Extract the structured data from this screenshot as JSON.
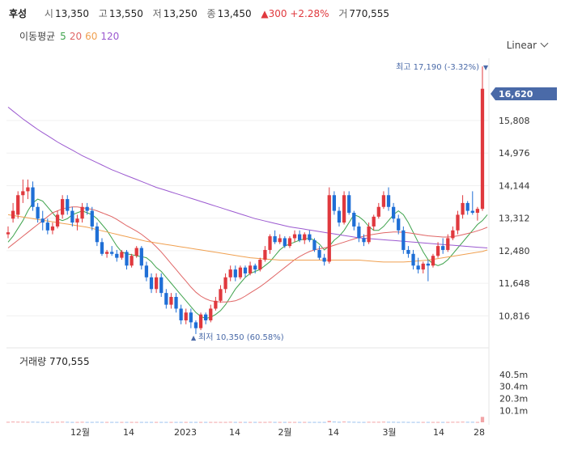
{
  "header": {
    "name": "후성",
    "open_label": "시",
    "open": "13,350",
    "high_label": "고",
    "high": "13,550",
    "low_label": "저",
    "low": "13,250",
    "close_label": "종",
    "close": "13,450",
    "change": "▲300 +2.28%",
    "volume_label": "거",
    "volume": "770,555"
  },
  "ma_legend": {
    "title": "이동평균",
    "items": [
      {
        "label": "5",
        "color": "#3fa34d"
      },
      {
        "label": "20",
        "color": "#e06666"
      },
      {
        "label": "60",
        "color": "#f0a050"
      },
      {
        "label": "120",
        "color": "#9b59d0"
      }
    ]
  },
  "scale_selector": {
    "label": "Linear"
  },
  "price_axis": {
    "ticks": [
      "15,808",
      "14,976",
      "14,144",
      "13,312",
      "12,480",
      "11,648",
      "10,816"
    ]
  },
  "current_price": "16,620",
  "annotations": {
    "high": "최고 17,190 (-3.32%)",
    "low": "최저 10,350 (60.58%)"
  },
  "x_axis": {
    "ticks": [
      "12월",
      "14",
      "2023",
      "14",
      "2월",
      "14",
      "3월",
      "14",
      "28"
    ]
  },
  "volume_panel": {
    "title": "거래량",
    "value": "770,555",
    "ticks": [
      "40.5m",
      "30.4m",
      "20.3m",
      "10.1m"
    ]
  },
  "colors": {
    "up": "#e0393e",
    "down": "#1f6fd6",
    "badge": "#4a6aa8"
  },
  "chart_data": {
    "type": "candlestick",
    "ylim": [
      10100,
      17400
    ],
    "ohlc": [
      [
        12900,
        13100,
        12800,
        12950
      ],
      [
        13300,
        13700,
        13200,
        13500
      ],
      [
        13400,
        14000,
        13300,
        13900
      ],
      [
        13900,
        14300,
        13700,
        14000
      ],
      [
        14000,
        14300,
        13800,
        14100
      ],
      [
        14100,
        14250,
        13500,
        13600
      ],
      [
        13600,
        13700,
        13200,
        13300
      ],
      [
        13300,
        13500,
        13000,
        13200
      ],
      [
        13200,
        13300,
        12900,
        13000
      ],
      [
        13000,
        13200,
        12900,
        13100
      ],
      [
        13100,
        13500,
        13050,
        13400
      ],
      [
        13400,
        13900,
        13300,
        13800
      ],
      [
        13800,
        13900,
        13400,
        13500
      ],
      [
        13500,
        13600,
        13100,
        13200
      ],
      [
        13200,
        13400,
        13000,
        13300
      ],
      [
        13300,
        13700,
        13200,
        13600
      ],
      [
        13600,
        13700,
        13400,
        13500
      ],
      [
        13500,
        13600,
        13000,
        13100
      ],
      [
        13100,
        13200,
        12600,
        12700
      ],
      [
        12700,
        12800,
        12350,
        12400
      ],
      [
        12400,
        12500,
        12300,
        12450
      ],
      [
        12450,
        12600,
        12350,
        12400
      ],
      [
        12400,
        12500,
        12200,
        12300
      ],
      [
        12300,
        12500,
        12250,
        12450
      ],
      [
        12450,
        12500,
        12000,
        12100
      ],
      [
        12100,
        12400,
        12050,
        12350
      ],
      [
        12350,
        12600,
        12300,
        12550
      ],
      [
        12550,
        12600,
        12000,
        12100
      ],
      [
        12100,
        12200,
        11700,
        11800
      ],
      [
        11800,
        11900,
        11400,
        11500
      ],
      [
        11500,
        11900,
        11400,
        11800
      ],
      [
        11800,
        11900,
        11300,
        11400
      ],
      [
        11400,
        11500,
        11000,
        11100
      ],
      [
        11100,
        11400,
        11000,
        11300
      ],
      [
        11300,
        11400,
        10900,
        11000
      ],
      [
        11000,
        11100,
        10600,
        10700
      ],
      [
        10700,
        11000,
        10600,
        10900
      ],
      [
        10900,
        11000,
        10500,
        10650
      ],
      [
        10650,
        10700,
        10350,
        10500
      ],
      [
        10500,
        10900,
        10450,
        10850
      ],
      [
        10850,
        10900,
        10600,
        10700
      ],
      [
        10700,
        11100,
        10650,
        11000
      ],
      [
        11000,
        11300,
        10950,
        11200
      ],
      [
        11200,
        11600,
        11150,
        11500
      ],
      [
        11500,
        11900,
        11400,
        11800
      ],
      [
        11800,
        12100,
        11700,
        12000
      ],
      [
        12000,
        12100,
        11700,
        11800
      ],
      [
        11800,
        12100,
        11750,
        12050
      ],
      [
        12050,
        12100,
        11800,
        11900
      ],
      [
        11900,
        12200,
        11850,
        12100
      ],
      [
        12100,
        12150,
        11900,
        12000
      ],
      [
        12000,
        12300,
        11950,
        12250
      ],
      [
        12250,
        12600,
        12200,
        12500
      ],
      [
        12500,
        12900,
        12400,
        12850
      ],
      [
        12850,
        13000,
        12650,
        12700
      ],
      [
        12700,
        12900,
        12650,
        12800
      ],
      [
        12800,
        12850,
        12550,
        12600
      ],
      [
        12600,
        12850,
        12550,
        12800
      ],
      [
        12800,
        13000,
        12700,
        12900
      ],
      [
        12900,
        13000,
        12700,
        12750
      ],
      [
        12750,
        12950,
        12650,
        12900
      ],
      [
        12900,
        13000,
        12700,
        12750
      ],
      [
        12750,
        12800,
        12450,
        12500
      ],
      [
        12500,
        12600,
        12250,
        12300
      ],
      [
        12300,
        12400,
        12100,
        12200
      ],
      [
        12200,
        14100,
        12150,
        13900
      ],
      [
        13900,
        14000,
        13400,
        13500
      ],
      [
        13500,
        13600,
        13100,
        13200
      ],
      [
        13200,
        14000,
        13150,
        13900
      ],
      [
        13900,
        14000,
        13400,
        13450
      ],
      [
        13450,
        13500,
        13000,
        13100
      ],
      [
        13100,
        13200,
        12700,
        12800
      ],
      [
        12800,
        12900,
        12600,
        12700
      ],
      [
        12700,
        13200,
        12650,
        13100
      ],
      [
        13100,
        13400,
        13000,
        13350
      ],
      [
        13350,
        13700,
        13300,
        13600
      ],
      [
        13600,
        14000,
        13550,
        13900
      ],
      [
        13900,
        14100,
        13500,
        13600
      ],
      [
        13600,
        13700,
        13200,
        13300
      ],
      [
        13300,
        13400,
        12900,
        13000
      ],
      [
        13000,
        13100,
        12400,
        12500
      ],
      [
        12500,
        12600,
        12300,
        12400
      ],
      [
        12400,
        12500,
        12000,
        12100
      ],
      [
        12100,
        12300,
        11900,
        12000
      ],
      [
        12000,
        12200,
        11900,
        12150
      ],
      [
        12150,
        12250,
        11700,
        12100
      ],
      [
        12100,
        12400,
        12050,
        12350
      ],
      [
        12350,
        12700,
        12300,
        12600
      ],
      [
        12600,
        12800,
        12400,
        12500
      ],
      [
        12500,
        12900,
        12450,
        12800
      ],
      [
        12800,
        13100,
        12750,
        13000
      ],
      [
        13000,
        13500,
        12900,
        13400
      ],
      [
        13400,
        13900,
        13300,
        13700
      ],
      [
        13700,
        13750,
        13400,
        13500
      ],
      [
        13500,
        14000,
        13400,
        13450
      ],
      [
        13450,
        13600,
        13250,
        13550
      ],
      [
        13550,
        17190,
        13500,
        16620
      ]
    ],
    "ma": [
      {
        "period": 5,
        "values": [
          12700,
          12850,
          13050,
          13250,
          13500,
          13700,
          13800,
          13750,
          13600,
          13450,
          13300,
          13250,
          13300,
          13400,
          13450,
          13500,
          13450,
          13400,
          13300,
          13150,
          13000,
          12800,
          12600,
          12450,
          12400,
          12380,
          12350,
          12330,
          12300,
          12200,
          12050,
          11950,
          11800,
          11650,
          11500,
          11350,
          11200,
          11050,
          10900,
          10800,
          10750,
          10780,
          10850,
          10950,
          11100,
          11300,
          11500,
          11650,
          11800,
          11900,
          11950,
          12000,
          12100,
          12200,
          12350,
          12500,
          12600,
          12650,
          12700,
          12750,
          12780,
          12800,
          12750,
          12650,
          12500,
          12600,
          12750,
          12850,
          13000,
          13200,
          13400,
          13350,
          13250,
          13100,
          13000,
          13000,
          13100,
          13250,
          13400,
          13500,
          13400,
          13200,
          12950,
          12700,
          12450,
          12250,
          12150,
          12100,
          12150,
          12250,
          12400,
          12550,
          12700,
          12850,
          13000,
          13150,
          13250,
          13400
        ]
      },
      {
        "period": 20,
        "values": [
          12550,
          12650,
          12750,
          12850,
          12950,
          13050,
          13150,
          13250,
          13350,
          13450,
          13500,
          13550,
          13580,
          13600,
          13600,
          13580,
          13560,
          13540,
          13500,
          13450,
          13400,
          13350,
          13280,
          13200,
          13120,
          13050,
          12980,
          12900,
          12800,
          12700,
          12580,
          12450,
          12300,
          12150,
          12000,
          11850,
          11700,
          11550,
          11420,
          11320,
          11250,
          11200,
          11180,
          11170,
          11170,
          11180,
          11200,
          11250,
          11320,
          11400,
          11480,
          11560,
          11650,
          11750,
          11850,
          11950,
          12050,
          12150,
          12250,
          12330,
          12400,
          12460,
          12500,
          12530,
          12550,
          12580,
          12620,
          12660,
          12700,
          12740,
          12780,
          12820,
          12850,
          12880,
          12900,
          12920,
          12940,
          12950,
          12960,
          12960,
          12950,
          12940,
          12920,
          12900,
          12880,
          12860,
          12850,
          12840,
          12830,
          12830,
          12840,
          12860,
          12890,
          12920,
          12950,
          12990,
          13030,
          13080
        ]
      },
      {
        "period": 60,
        "values": [
          13400,
          13380,
          13360,
          13340,
          13320,
          13300,
          13280,
          13260,
          13240,
          13220,
          13200,
          13180,
          13160,
          13140,
          13120,
          13100,
          13080,
          13050,
          13020,
          12990,
          12960,
          12930,
          12900,
          12870,
          12840,
          12810,
          12780,
          12750,
          12720,
          12700,
          12680,
          12660,
          12640,
          12620,
          12600,
          12580,
          12560,
          12540,
          12520,
          12500,
          12480,
          12460,
          12440,
          12420,
          12400,
          12380,
          12360,
          12340,
          12320,
          12300,
          12290,
          12280,
          12270,
          12260,
          12250,
          12240,
          12240,
          12240,
          12240,
          12240,
          12240,
          12240,
          12240,
          12240,
          12240,
          12240,
          12240,
          12240,
          12240,
          12240,
          12240,
          12240,
          12230,
          12220,
          12210,
          12200,
          12190,
          12190,
          12190,
          12190,
          12190,
          12200,
          12210,
          12220,
          12230,
          12240,
          12260,
          12280,
          12300,
          12320,
          12340,
          12360,
          12380,
          12400,
          12420,
          12440,
          12460,
          12500
        ]
      },
      {
        "period": 120,
        "values": [
          16150,
          16050,
          15950,
          15850,
          15760,
          15670,
          15580,
          15500,
          15420,
          15340,
          15260,
          15190,
          15120,
          15050,
          14980,
          14910,
          14850,
          14790,
          14730,
          14670,
          14610,
          14550,
          14500,
          14450,
          14400,
          14350,
          14300,
          14250,
          14200,
          14150,
          14100,
          14060,
          14020,
          13980,
          13940,
          13900,
          13860,
          13820,
          13780,
          13740,
          13700,
          13660,
          13620,
          13580,
          13540,
          13500,
          13460,
          13420,
          13380,
          13340,
          13300,
          13270,
          13240,
          13210,
          13180,
          13150,
          13120,
          13090,
          13070,
          13050,
          13030,
          13010,
          12990,
          12970,
          12950,
          12930,
          12910,
          12890,
          12870,
          12850,
          12830,
          12810,
          12800,
          12790,
          12780,
          12770,
          12760,
          12750,
          12740,
          12730,
          12720,
          12710,
          12700,
          12690,
          12680,
          12670,
          12660,
          12650,
          12640,
          12630,
          12620,
          12610,
          12600,
          12590,
          12580,
          12570,
          12560,
          12550
        ]
      }
    ],
    "volume": [
      0.4,
      0.6,
      0.5,
      0.5,
      0.4,
      0.5,
      0.4,
      0.3,
      0.3,
      0.3,
      0.4,
      0.5,
      0.4,
      0.3,
      0.3,
      0.4,
      0.3,
      0.3,
      0.4,
      0.3,
      0.3,
      0.3,
      0.3,
      0.3,
      0.3,
      0.3,
      0.3,
      0.3,
      0.3,
      0.3,
      0.3,
      0.3,
      0.3,
      0.3,
      0.3,
      0.3,
      0.3,
      0.3,
      0.3,
      0.3,
      0.3,
      0.3,
      0.3,
      0.3,
      0.3,
      0.4,
      0.3,
      0.3,
      0.3,
      0.3,
      0.3,
      0.3,
      0.3,
      0.4,
      0.3,
      0.3,
      0.3,
      0.3,
      0.3,
      0.3,
      0.3,
      0.3,
      0.3,
      0.3,
      0.3,
      1.2,
      0.6,
      0.4,
      0.6,
      0.5,
      0.4,
      0.3,
      0.3,
      0.4,
      0.4,
      0.4,
      0.5,
      0.4,
      0.4,
      0.3,
      0.4,
      0.3,
      0.3,
      0.3,
      0.3,
      0.3,
      0.3,
      0.3,
      0.3,
      0.3,
      0.4,
      0.4,
      0.5,
      0.4,
      0.4,
      0.3,
      4.6
    ]
  }
}
